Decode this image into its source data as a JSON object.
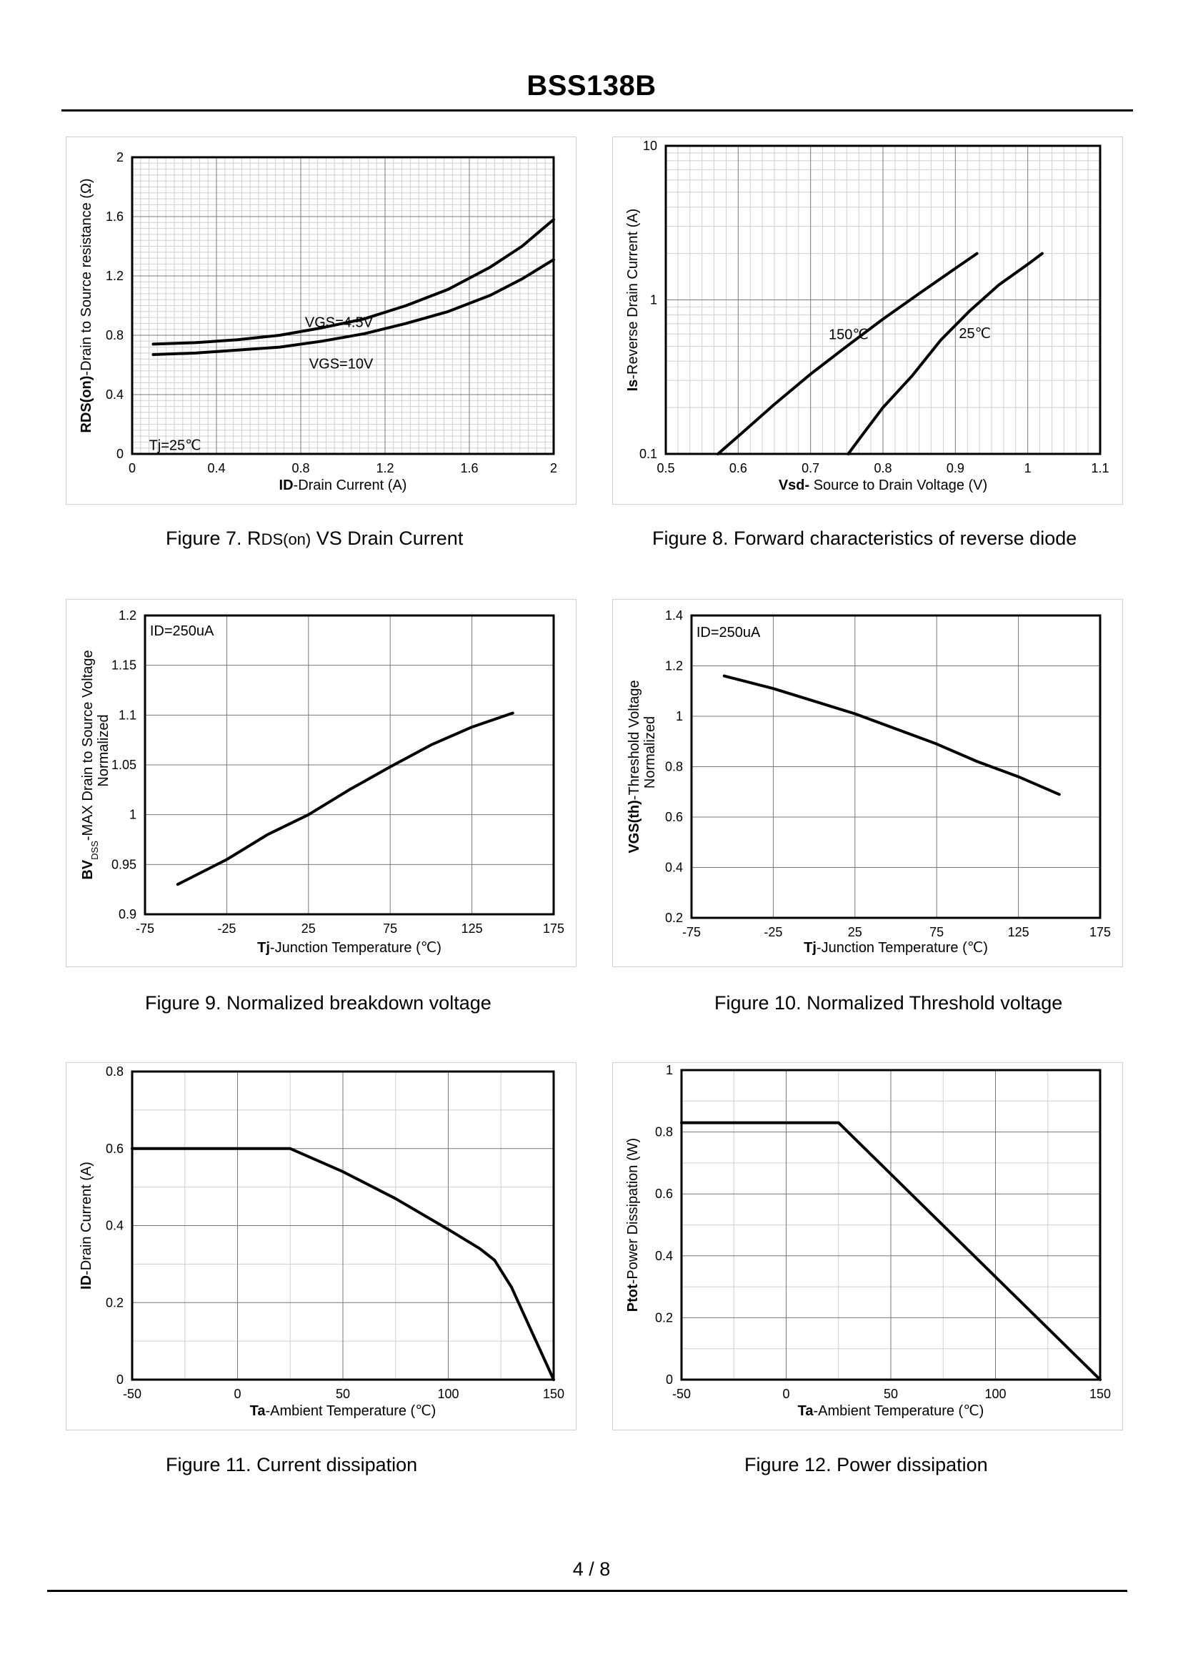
{
  "header": {
    "title": "BSS138B"
  },
  "footer": {
    "page": "4 / 8"
  },
  "captions": {
    "fig7": {
      "prefix": "Figure 7.  R",
      "sub": "DS(on)",
      "suffix": " VS Drain Current"
    },
    "fig8": "Figure 8.  Forward characteristics of reverse diode",
    "fig9": "Figure 9.  Normalized breakdown voltage",
    "fig10": "Figure 10.  Normalized Threshold voltage",
    "fig11": "Figure 11.  Current dissipation",
    "fig12": "Figure 12.  Power dissipation"
  },
  "chart_data": [
    {
      "id": "fig7",
      "type": "line",
      "xlim": [
        0,
        2
      ],
      "ylim": [
        0,
        2
      ],
      "xticks": [
        0,
        0.4,
        0.8,
        1.2,
        1.6,
        2
      ],
      "yticks": [
        0,
        0.4,
        0.8,
        1.2,
        1.6,
        2
      ],
      "xtick_labels": [
        "0",
        "0.4",
        "0.8",
        "1.2",
        "1.6",
        "2"
      ],
      "ytick_labels": [
        "0",
        "0.4",
        "0.8",
        "1.2",
        "1.6",
        "2"
      ],
      "xminor": 10,
      "yminor": 10,
      "xlabel": {
        "bold": "ID",
        "rest": "-Drain Current (A)"
      },
      "ylabel": {
        "bold": "RDS(on)",
        "rest": "-Drain to Source resistance (Ω)"
      },
      "annotations": [
        {
          "text": "VGS=4.5V",
          "x": 0.82,
          "y": 0.89
        },
        {
          "text": "VGS=10V",
          "x": 0.84,
          "y": 0.61
        },
        {
          "text": "Tj=25℃",
          "x": 0.08,
          "y": 0.06
        }
      ],
      "series": [
        {
          "name": "VGS=4.5V",
          "x": [
            0.1,
            0.3,
            0.5,
            0.7,
            0.9,
            1.1,
            1.3,
            1.5,
            1.7,
            1.85,
            2.0
          ],
          "y": [
            0.74,
            0.75,
            0.77,
            0.8,
            0.85,
            0.91,
            1.0,
            1.11,
            1.26,
            1.4,
            1.58
          ]
        },
        {
          "name": "VGS=10V",
          "x": [
            0.1,
            0.3,
            0.5,
            0.7,
            0.9,
            1.1,
            1.3,
            1.5,
            1.7,
            1.85,
            2.0
          ],
          "y": [
            0.67,
            0.68,
            0.7,
            0.72,
            0.76,
            0.81,
            0.88,
            0.96,
            1.07,
            1.18,
            1.31
          ]
        }
      ]
    },
    {
      "id": "fig8",
      "type": "line",
      "yscale": "log",
      "xlim": [
        0.5,
        1.1
      ],
      "ylim": [
        0.1,
        10
      ],
      "xticks": [
        0.5,
        0.6,
        0.7,
        0.8,
        0.9,
        1,
        1.1
      ],
      "yticks": [
        0.1,
        1,
        10
      ],
      "xtick_labels": [
        "0.5",
        "0.6",
        "0.7",
        "0.8",
        "0.9",
        "1",
        "1.1"
      ],
      "ytick_labels": [
        "0.1",
        "1",
        "10"
      ],
      "xminor": 6,
      "yminor": 0,
      "xlabel": {
        "bold": "Vsd-",
        "rest": " Source to Drain Voltage (V)"
      },
      "ylabel": {
        "bold": "Is",
        "rest": "-Reverse  Drain Current (A)"
      },
      "annotations": [
        {
          "text": "150℃",
          "x": 0.725,
          "y": 0.6
        },
        {
          "text": "25℃",
          "x": 0.905,
          "y": 0.61
        }
      ],
      "series": [
        {
          "name": "150℃",
          "x": [
            0.572,
            0.6,
            0.65,
            0.7,
            0.75,
            0.8,
            0.85,
            0.9,
            0.93
          ],
          "y": [
            0.1,
            0.13,
            0.21,
            0.33,
            0.5,
            0.75,
            1.1,
            1.6,
            2.0
          ]
        },
        {
          "name": "25℃",
          "x": [
            0.752,
            0.77,
            0.8,
            0.84,
            0.88,
            0.92,
            0.96,
            1.0,
            1.02
          ],
          "y": [
            0.1,
            0.13,
            0.2,
            0.32,
            0.55,
            0.85,
            1.25,
            1.7,
            2.0
          ]
        }
      ]
    },
    {
      "id": "fig9",
      "type": "line",
      "xlim": [
        -75,
        175
      ],
      "ylim": [
        0.9,
        1.2
      ],
      "xticks": [
        -75,
        -25,
        25,
        75,
        125,
        175
      ],
      "yticks": [
        0.9,
        0.95,
        1,
        1.05,
        1.1,
        1.15,
        1.2
      ],
      "xtick_labels": [
        "-75",
        "-25",
        "25",
        "75",
        "125",
        "175"
      ],
      "ytick_labels": [
        "0.9",
        "0.95",
        "1",
        "1.05",
        "1.1",
        "1.15",
        "1.2"
      ],
      "xminor": 0,
      "yminor": 0,
      "xlabel": {
        "bold": "Tj",
        "rest": "-Junction  Temperature (℃)"
      },
      "ylabel": {
        "bold": "BV",
        "sub": "DSS",
        "rest": "-MAX Drain to Source Voltage",
        "line2": "Normalized"
      },
      "annotations": [
        {
          "text": "ID=250uA",
          "x": -72,
          "y": 1.185
        }
      ],
      "series": [
        {
          "name": "BVDSS",
          "x": [
            -55,
            -25,
            0,
            25,
            50,
            75,
            100,
            125,
            150
          ],
          "y": [
            0.93,
            0.955,
            0.98,
            1.0,
            1.025,
            1.048,
            1.07,
            1.088,
            1.102
          ]
        }
      ]
    },
    {
      "id": "fig10",
      "type": "line",
      "xlim": [
        -75,
        175
      ],
      "ylim": [
        0.2,
        1.4
      ],
      "xticks": [
        -75,
        -25,
        25,
        75,
        125,
        175
      ],
      "yticks": [
        0.2,
        0.4,
        0.6,
        0.8,
        1,
        1.2,
        1.4
      ],
      "xtick_labels": [
        "-75",
        "-25",
        "25",
        "75",
        "125",
        "175"
      ],
      "ytick_labels": [
        "0.2",
        "0.4",
        "0.6",
        "0.8",
        "1",
        "1.2",
        "1.4"
      ],
      "xminor": 0,
      "yminor": 0,
      "xlabel": {
        "bold": "Tj",
        "rest": "-Junction  Temperature (℃)"
      },
      "ylabel": {
        "bold": "VGS(th)",
        "rest": "-Threshold  Voltage",
        "line2": "Normalized"
      },
      "annotations": [
        {
          "text": "ID=250uA",
          "x": -72,
          "y": 1.335
        }
      ],
      "series": [
        {
          "name": "VGS(th)",
          "x": [
            -55,
            -25,
            0,
            25,
            50,
            75,
            100,
            125,
            150
          ],
          "y": [
            1.16,
            1.11,
            1.06,
            1.01,
            0.95,
            0.89,
            0.82,
            0.76,
            0.69
          ]
        }
      ]
    },
    {
      "id": "fig11",
      "type": "line",
      "xlim": [
        -50,
        150
      ],
      "ylim": [
        0,
        0.8
      ],
      "xticks": [
        -50,
        0,
        50,
        100,
        150
      ],
      "yticks": [
        0,
        0.2,
        0.4,
        0.6,
        0.8
      ],
      "xtick_labels": [
        "-50",
        "0",
        "50",
        "100",
        "150"
      ],
      "ytick_labels": [
        "0",
        "0.2",
        "0.4",
        "0.6",
        "0.8"
      ],
      "xminor": 2,
      "yminor": 2,
      "xlabel": {
        "bold": "Ta",
        "rest": "-Ambient Temperature (℃)"
      },
      "ylabel": {
        "bold": "ID",
        "rest": "-Drain Current (A)"
      },
      "annotations": [],
      "series": [
        {
          "name": "ID",
          "x": [
            -50,
            25,
            50,
            75,
            100,
            115,
            122,
            130,
            140,
            150
          ],
          "y": [
            0.6,
            0.6,
            0.54,
            0.47,
            0.39,
            0.34,
            0.31,
            0.24,
            0.12,
            0.0
          ]
        }
      ]
    },
    {
      "id": "fig12",
      "type": "line",
      "xlim": [
        -50,
        150
      ],
      "ylim": [
        0,
        1
      ],
      "xticks": [
        -50,
        0,
        50,
        100,
        150
      ],
      "yticks": [
        0,
        0.2,
        0.4,
        0.6,
        0.8,
        1
      ],
      "xtick_labels": [
        "-50",
        "0",
        "50",
        "100",
        "150"
      ],
      "ytick_labels": [
        "0",
        "0.2",
        "0.4",
        "0.6",
        "0.8",
        "1"
      ],
      "xminor": 2,
      "yminor": 2,
      "xlabel": {
        "bold": "Ta",
        "rest": "-Ambient Temperature (℃)"
      },
      "ylabel": {
        "bold": "Ptot",
        "rest": "-Power Dissipation (W)"
      },
      "annotations": [],
      "series": [
        {
          "name": "Ptot",
          "x": [
            -50,
            25,
            150
          ],
          "y": [
            0.83,
            0.83,
            0.0
          ]
        }
      ]
    }
  ]
}
